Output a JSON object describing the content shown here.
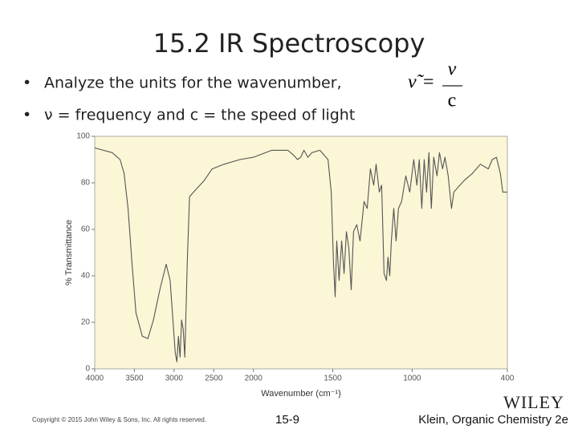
{
  "slide": {
    "title": "15.2 IR Spectroscopy",
    "bullets": [
      "Analyze the units for the wavenumber, ",
      "ν = frequency and c = the speed of light"
    ],
    "formula": {
      "lhs": "ν̃",
      "eq": "=",
      "numerator": "ν",
      "denominator": "c"
    },
    "copyright": "Copyright © 2015 John Wiley & Sons, Inc. All rights reserved.",
    "page": "15-9",
    "logo": "WILEY",
    "book": "Klein, Organic Chemistry 2e"
  },
  "chart_data": {
    "type": "line",
    "xlabel": "Wavenumber (cm⁻¹)",
    "ylabel": "% Transmittance",
    "color": "#555555",
    "background": "#fbf6d6",
    "x_scale_break": 2000,
    "xlim": [
      4000,
      400
    ],
    "xticks": [
      4000,
      3500,
      3000,
      2500,
      2000,
      1500,
      1000,
      400
    ],
    "ylim": [
      0,
      100
    ],
    "yticks": [
      0,
      20,
      40,
      60,
      80,
      100
    ],
    "grid": false,
    "x": [
      4000,
      3780,
      3680,
      3630,
      3580,
      3530,
      3480,
      3400,
      3330,
      3260,
      3180,
      3100,
      3050,
      3015,
      2985,
      2965,
      2945,
      2925,
      2905,
      2885,
      2865,
      2835,
      2805,
      2755,
      2700,
      2620,
      2520,
      2370,
      2170,
      2000,
      1884,
      1783,
      1748,
      1722,
      1702,
      1682,
      1657,
      1631,
      1581,
      1530,
      1510,
      1495,
      1485,
      1475,
      1460,
      1444,
      1429,
      1414,
      1399,
      1384,
      1369,
      1349,
      1328,
      1303,
      1283,
      1263,
      1242,
      1227,
      1207,
      1192,
      1177,
      1162,
      1152,
      1141,
      1131,
      1116,
      1101,
      1086,
      1066,
      1040,
      1015,
      990,
      970,
      955,
      939,
      924,
      909,
      894,
      879,
      864,
      843,
      828,
      808,
      793,
      773,
      752,
      737,
      712,
      672,
      621,
      570,
      520,
      495,
      469,
      444,
      429,
      400
    ],
    "values": [
      95,
      93,
      90,
      84,
      69,
      45,
      24,
      14,
      13,
      21,
      34,
      45,
      38,
      21,
      7,
      3,
      14,
      5,
      21,
      17,
      5,
      45,
      74,
      76,
      78,
      81,
      86,
      88,
      90,
      91,
      94,
      94,
      92,
      90,
      91,
      94,
      91,
      93,
      94,
      90,
      76,
      45,
      31,
      55,
      38,
      55,
      41,
      59,
      52,
      34,
      59,
      62,
      55,
      72,
      69,
      86,
      79,
      88,
      76,
      79,
      41,
      38,
      48,
      40,
      55,
      69,
      55,
      69,
      72,
      83,
      76,
      90,
      79,
      90,
      69,
      90,
      76,
      93,
      69,
      91,
      83,
      93,
      86,
      91,
      83,
      69,
      76,
      78,
      81,
      84,
      88,
      86,
      90,
      91,
      84,
      76,
      76
    ]
  }
}
